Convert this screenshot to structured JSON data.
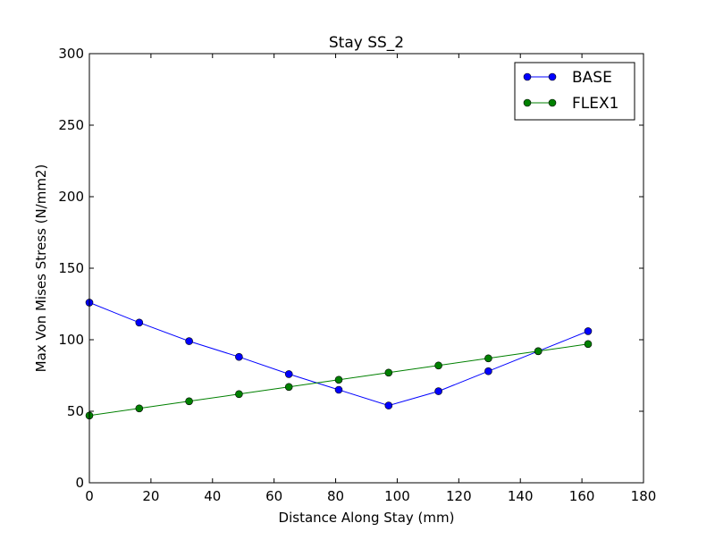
{
  "chart_data": {
    "type": "line",
    "title": "Stay SS_2",
    "xlabel": "Distance Along Stay (mm)",
    "ylabel": "Max Von Mises Stress (N/mm2)",
    "xlim": [
      0,
      180
    ],
    "ylim": [
      0,
      300
    ],
    "xticks": [
      0,
      20,
      40,
      60,
      80,
      100,
      120,
      140,
      160,
      180
    ],
    "yticks": [
      0,
      50,
      100,
      150,
      200,
      250,
      300
    ],
    "grid": false,
    "legend_position": "top-right",
    "series": [
      {
        "name": "BASE",
        "color": "#0000ff",
        "marker": "circle",
        "x": [
          0,
          16.2,
          32.4,
          48.6,
          64.8,
          81.0,
          97.2,
          113.4,
          129.6,
          145.8,
          162.0
        ],
        "y": [
          126,
          112,
          99,
          88,
          76,
          65,
          54,
          64,
          78,
          92,
          106
        ]
      },
      {
        "name": "FLEX1",
        "color": "#008000",
        "marker": "circle",
        "x": [
          0,
          16.2,
          32.4,
          48.6,
          64.8,
          81.0,
          97.2,
          113.4,
          129.6,
          145.8,
          162.0
        ],
        "y": [
          47,
          52,
          57,
          62,
          67,
          72,
          77,
          82,
          87,
          92,
          97
        ]
      }
    ]
  }
}
